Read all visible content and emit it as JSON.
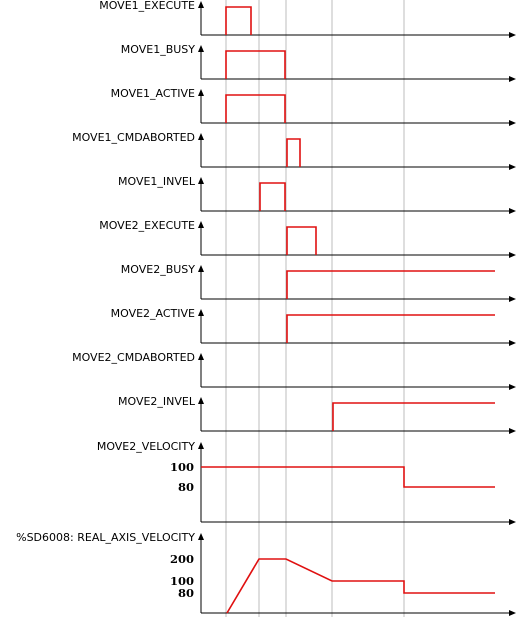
{
  "colors": {
    "signal": "#e01010",
    "axis": "#000000",
    "guide": "#bdbdbd"
  },
  "signals": [
    {
      "name": "MOVE1_EXECUTE",
      "type": "digital",
      "pulses": [
        [
          25,
          50
        ]
      ]
    },
    {
      "name": "MOVE1_BUSY",
      "type": "digital",
      "pulses": [
        [
          25,
          84
        ]
      ]
    },
    {
      "name": "MOVE1_ACTIVE",
      "type": "digital",
      "pulses": [
        [
          25,
          84
        ]
      ]
    },
    {
      "name": "MOVE1_CMDABORTED",
      "type": "digital",
      "pulses": [
        [
          86,
          99
        ]
      ]
    },
    {
      "name": "MOVE1_INVEL",
      "type": "digital",
      "pulses": [
        [
          59,
          84
        ]
      ]
    },
    {
      "name": "MOVE2_EXECUTE",
      "type": "digital",
      "pulses": [
        [
          86,
          115
        ]
      ]
    },
    {
      "name": "MOVE2_BUSY",
      "type": "digital",
      "pulses": [
        [
          86,
          294
        ]
      ]
    },
    {
      "name": "MOVE2_ACTIVE",
      "type": "digital",
      "pulses": [
        [
          86,
          294
        ]
      ]
    },
    {
      "name": "MOVE2_CMDABORTED",
      "type": "digital",
      "pulses": []
    },
    {
      "name": "MOVE2_INVEL",
      "type": "digital",
      "pulses": [
        [
          132,
          294
        ]
      ]
    },
    {
      "name": "MOVE2_VELOCITY",
      "type": "analog",
      "ticks": [
        {
          "label": "100",
          "value": 100
        },
        {
          "label": "80",
          "value": 80
        }
      ],
      "points": [
        [
          0,
          100
        ],
        [
          203,
          100
        ],
        [
          203,
          80
        ],
        [
          294,
          80
        ]
      ]
    },
    {
      "name": "%SD6008: REAL_AXIS_VELOCITY",
      "type": "analog",
      "ticks": [
        {
          "label": "200",
          "value": 200
        },
        {
          "label": "100",
          "value": 100
        },
        {
          "label": "80",
          "value": 80
        }
      ],
      "points": [
        [
          26,
          0
        ],
        [
          58,
          200
        ],
        [
          85,
          200
        ],
        [
          131,
          100
        ],
        [
          203,
          100
        ],
        [
          203,
          80
        ],
        [
          294,
          80
        ]
      ]
    }
  ],
  "guide_times": [
    25,
    58,
    85,
    131,
    203
  ]
}
